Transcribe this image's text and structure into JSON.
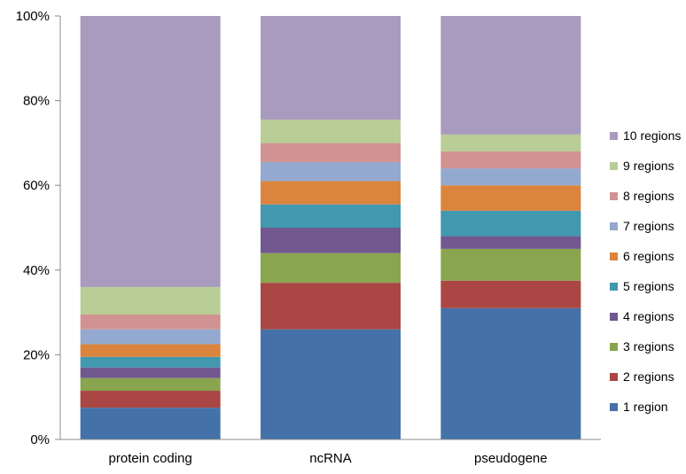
{
  "chart_data": {
    "type": "bar",
    "stacked": true,
    "normalized": true,
    "categories": [
      "protein coding",
      "ncRNA",
      "pseudogene"
    ],
    "y_ticks": [
      "0%",
      "20%",
      "40%",
      "60%",
      "80%",
      "100%"
    ],
    "ylim": [
      0,
      100
    ],
    "grid": false,
    "legend_position": "right",
    "series": [
      {
        "name": "1 region",
        "color": "#4472a8",
        "values": [
          7.5,
          26,
          31
        ]
      },
      {
        "name": "2 regions",
        "color": "#aa4643",
        "values": [
          4,
          11,
          6.5
        ]
      },
      {
        "name": "3 regions",
        "color": "#89a54e",
        "values": [
          3,
          7,
          7.5
        ]
      },
      {
        "name": "4 regions",
        "color": "#71588f",
        "values": [
          2.5,
          6,
          3
        ]
      },
      {
        "name": "5 regions",
        "color": "#4198af",
        "values": [
          2.5,
          5.5,
          6
        ]
      },
      {
        "name": "6 regions",
        "color": "#db843d",
        "values": [
          3,
          5.5,
          6
        ]
      },
      {
        "name": "7 regions",
        "color": "#93a9cf",
        "values": [
          3.5,
          4.5,
          4
        ]
      },
      {
        "name": "8 regions",
        "color": "#d19392",
        "values": [
          3.5,
          4.5,
          4
        ]
      },
      {
        "name": "9 regions",
        "color": "#b9cd96",
        "values": [
          6.5,
          5.5,
          4
        ]
      },
      {
        "name": "10 regions",
        "color": "#a99bbd",
        "values": [
          64,
          24.5,
          28
        ]
      }
    ]
  }
}
